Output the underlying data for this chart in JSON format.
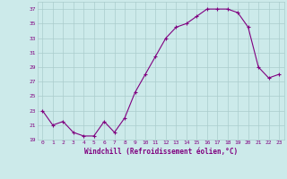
{
  "x": [
    0,
    1,
    2,
    3,
    4,
    5,
    6,
    7,
    8,
    9,
    10,
    11,
    12,
    13,
    14,
    15,
    16,
    17,
    18,
    19,
    20,
    21,
    22,
    23
  ],
  "y": [
    23,
    21,
    21.5,
    20,
    19.5,
    19.5,
    21.5,
    20,
    22,
    25.5,
    28,
    30.5,
    33,
    34.5,
    35,
    36,
    37,
    37,
    37,
    36.5,
    34.5,
    29,
    27.5,
    28
  ],
  "line_color": "#800080",
  "marker": "+",
  "bg_color": "#cceaea",
  "grid_color": "#aacccc",
  "xlabel": "Windchill (Refroidissement éolien,°C)",
  "xlabel_color": "#800080",
  "tick_color": "#800080",
  "ylim": [
    19,
    38
  ],
  "yticks": [
    19,
    21,
    23,
    25,
    27,
    29,
    31,
    33,
    35,
    37
  ],
  "xlim": [
    -0.5,
    23.5
  ],
  "xticks": [
    0,
    1,
    2,
    3,
    4,
    5,
    6,
    7,
    8,
    9,
    10,
    11,
    12,
    13,
    14,
    15,
    16,
    17,
    18,
    19,
    20,
    21,
    22,
    23
  ]
}
